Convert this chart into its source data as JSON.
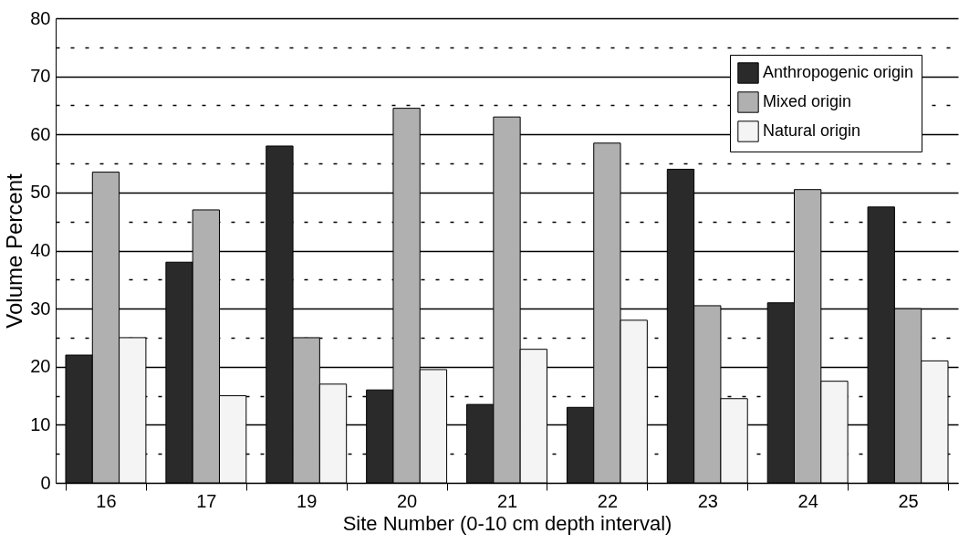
{
  "chart_data": {
    "type": "bar",
    "xlabel": "Site Number (0-10 cm depth interval)",
    "ylabel": "Volume Percent",
    "categories": [
      "16",
      "17",
      "19",
      "20",
      "21",
      "22",
      "23",
      "24",
      "25"
    ],
    "series": [
      {
        "name": "Anthropogenic origin",
        "color": "#2a2a2a",
        "values": [
          22,
          38,
          58,
          16,
          13.5,
          13,
          54,
          31,
          47.5
        ]
      },
      {
        "name": "Mixed origin",
        "color": "#b0b0b0",
        "values": [
          53.5,
          47,
          25,
          64.5,
          63,
          58.5,
          30.5,
          50.5,
          30
        ]
      },
      {
        "name": "Natural origin",
        "color": "#f4f4f4",
        "values": [
          25,
          15,
          17,
          19.5,
          23,
          28,
          14.5,
          17.5,
          21
        ]
      }
    ],
    "ylim": [
      0,
      80
    ],
    "yticks": [
      0,
      {
        "value": 5,
        "label": null
      },
      10,
      {
        "value": 15,
        "label": null
      },
      20,
      {
        "value": 25,
        "label": null
      },
      30,
      {
        "value": 35,
        "label": null
      },
      40,
      {
        "value": 45,
        "label": null
      },
      50,
      {
        "value": 55,
        "label": null
      },
      60,
      {
        "value": 65,
        "label": null
      },
      70,
      {
        "value": 75,
        "label": null
      },
      80
    ],
    "grid": "y",
    "legend": "top right"
  }
}
